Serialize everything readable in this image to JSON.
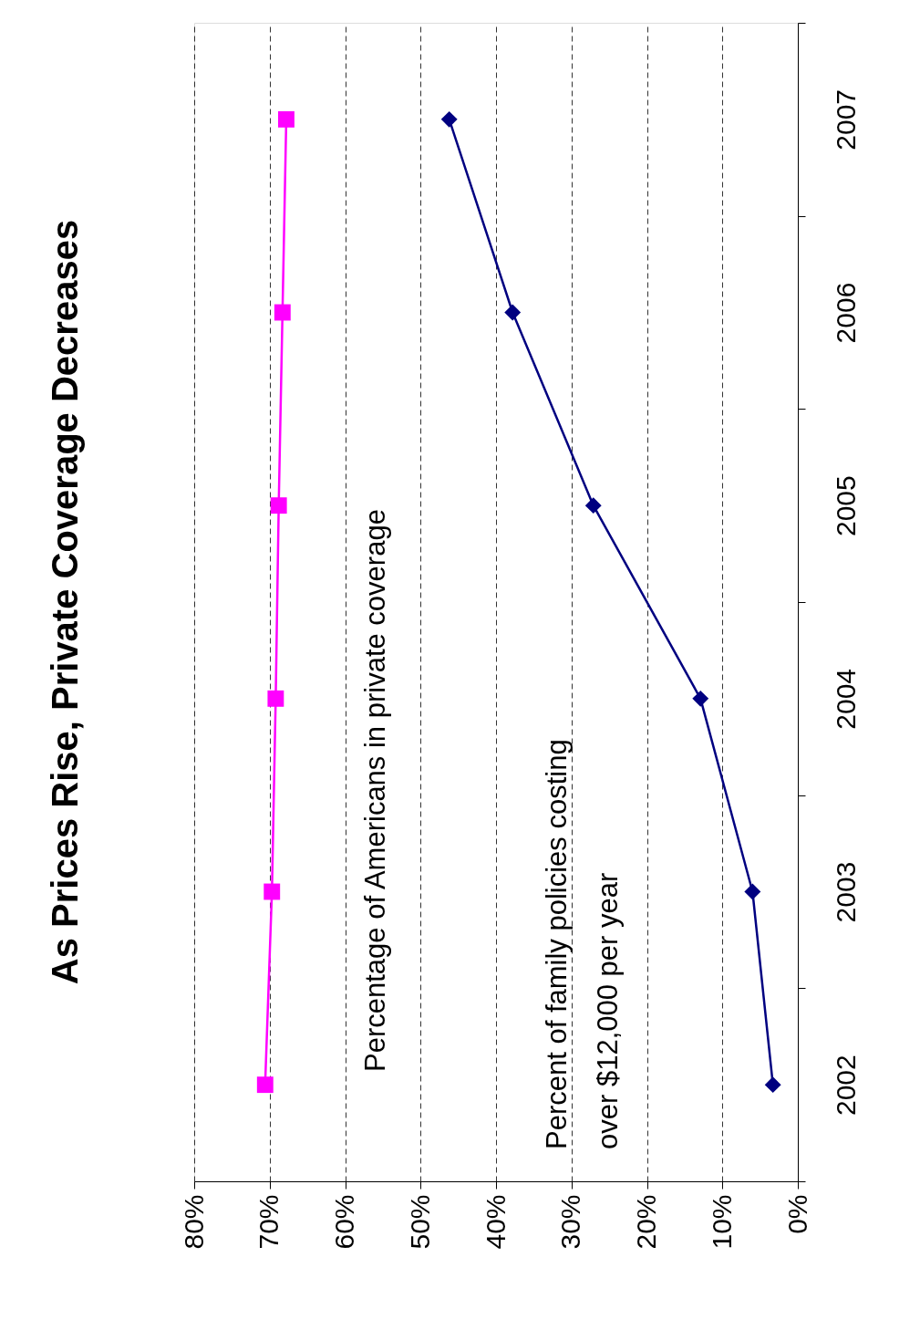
{
  "chart_data": {
    "type": "line",
    "title": "As Prices Rise,  Private Coverage Decreases",
    "orientation": "horizontal",
    "categories": [
      "2007",
      "2006",
      "2005",
      "2004",
      "2003",
      "2002"
    ],
    "series": [
      {
        "name": "Percentage of Americans in private coverage",
        "color": "#ff00ff",
        "marker": "square",
        "values": [
          67.8,
          68.3,
          68.8,
          69.2,
          69.7,
          70.6
        ]
      },
      {
        "name": "Percent of family policies costing\nover $12,000 per year",
        "color": "#000080",
        "marker": "diamond",
        "values": [
          46.2,
          37.8,
          27.1,
          12.9,
          6.0,
          3.3
        ]
      }
    ],
    "xlim": [
      80,
      0
    ],
    "xticks": [
      {
        "value": 0,
        "label": "0%"
      },
      {
        "value": 10,
        "label": "10%"
      },
      {
        "value": 20,
        "label": "20%"
      },
      {
        "value": 30,
        "label": "30%"
      },
      {
        "value": 40,
        "label": "40%"
      },
      {
        "value": 50,
        "label": "50%"
      },
      {
        "value": 60,
        "label": "60%"
      },
      {
        "value": 70,
        "label": "70%"
      },
      {
        "value": 80,
        "label": "80%"
      }
    ],
    "grid": "x"
  }
}
